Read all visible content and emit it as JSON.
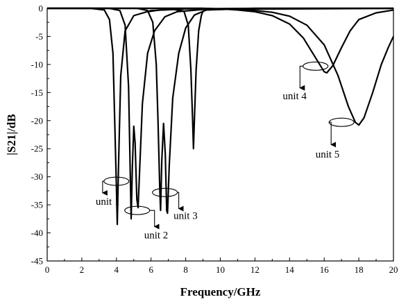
{
  "chart_data": {
    "type": "line",
    "xlabel": "Frequency/GHz",
    "ylabel": "|S21|/dB",
    "xlim": [
      0,
      20
    ],
    "ylim": [
      -45,
      0
    ],
    "xticks": [
      0,
      2,
      4,
      6,
      8,
      10,
      12,
      14,
      16,
      18,
      20
    ],
    "yticks": [
      0,
      -5,
      -10,
      -15,
      -20,
      -25,
      -30,
      -35,
      -40,
      -45
    ],
    "grid": false,
    "series": [
      {
        "label": "unit 1",
        "color": "#000000",
        "points": [
          [
            0,
            0
          ],
          [
            2.5,
            0
          ],
          [
            3.3,
            -0.3
          ],
          [
            3.6,
            -2
          ],
          [
            3.8,
            -8
          ],
          [
            3.9,
            -20
          ],
          [
            4.0,
            -32
          ],
          [
            4.05,
            -38.5
          ],
          [
            4.12,
            -28
          ],
          [
            4.25,
            -12
          ],
          [
            4.5,
            -4
          ],
          [
            5.0,
            -1.3
          ],
          [
            6.0,
            -0.4
          ],
          [
            8.0,
            -0.1
          ],
          [
            12.0,
            0
          ],
          [
            20.0,
            0
          ]
        ]
      },
      {
        "label": "unit 2",
        "color": "#000000",
        "points": [
          [
            0,
            0
          ],
          [
            3.6,
            0
          ],
          [
            4.2,
            -0.4
          ],
          [
            4.5,
            -3
          ],
          [
            4.7,
            -14
          ],
          [
            4.8,
            -30
          ],
          [
            4.85,
            -37.5
          ],
          [
            4.92,
            -28
          ],
          [
            5.0,
            -21
          ],
          [
            5.08,
            -24
          ],
          [
            5.18,
            -34
          ],
          [
            5.25,
            -35.5
          ],
          [
            5.35,
            -28
          ],
          [
            5.5,
            -17
          ],
          [
            5.8,
            -8
          ],
          [
            6.2,
            -4
          ],
          [
            6.8,
            -1.5
          ],
          [
            7.5,
            -0.6
          ],
          [
            9.0,
            -0.2
          ],
          [
            20.0,
            0
          ]
        ]
      },
      {
        "label": "unit 3",
        "color": "#000000",
        "points": [
          [
            0,
            0
          ],
          [
            5.2,
            0
          ],
          [
            5.8,
            -0.4
          ],
          [
            6.1,
            -2.5
          ],
          [
            6.3,
            -10
          ],
          [
            6.4,
            -20
          ],
          [
            6.5,
            -32
          ],
          [
            6.55,
            -36
          ],
          [
            6.62,
            -27
          ],
          [
            6.72,
            -20.5
          ],
          [
            6.82,
            -26
          ],
          [
            6.9,
            -36
          ],
          [
            6.95,
            -36.5
          ],
          [
            7.05,
            -28
          ],
          [
            7.25,
            -16
          ],
          [
            7.6,
            -8
          ],
          [
            8.0,
            -3.5
          ],
          [
            8.5,
            -1.2
          ],
          [
            9.2,
            -0.3
          ],
          [
            12.0,
            0
          ],
          [
            20.0,
            0
          ]
        ]
      },
      {
        "label": "",
        "color": "#000000",
        "points": [
          [
            5.8,
            -0.6
          ],
          [
            6.5,
            -0.3
          ],
          [
            7.3,
            -0.2
          ],
          [
            7.9,
            -0.5
          ],
          [
            8.15,
            -3
          ],
          [
            8.3,
            -11
          ],
          [
            8.4,
            -20
          ],
          [
            8.45,
            -25
          ],
          [
            8.5,
            -20
          ],
          [
            8.6,
            -11
          ],
          [
            8.75,
            -4
          ],
          [
            8.9,
            -1.3
          ],
          [
            9.0,
            -0.5
          ]
        ]
      },
      {
        "label": "unit 4",
        "color": "#000000",
        "points": [
          [
            0,
            0
          ],
          [
            9.0,
            0
          ],
          [
            10.0,
            -0.1
          ],
          [
            11.0,
            -0.3
          ],
          [
            12.0,
            -0.6
          ],
          [
            13.0,
            -1.3
          ],
          [
            14.0,
            -2.8
          ],
          [
            14.8,
            -5.3
          ],
          [
            15.5,
            -8.8
          ],
          [
            16.0,
            -11.3
          ],
          [
            16.15,
            -11.5
          ],
          [
            16.5,
            -10.2
          ],
          [
            17.0,
            -7.0
          ],
          [
            17.5,
            -4.0
          ],
          [
            18.0,
            -2.0
          ],
          [
            19.0,
            -0.8
          ],
          [
            20.0,
            -0.3
          ]
        ]
      },
      {
        "label": "unit 5",
        "color": "#000000",
        "points": [
          [
            0,
            0
          ],
          [
            9.0,
            0
          ],
          [
            10.0,
            -0.1
          ],
          [
            11.0,
            -0.2
          ],
          [
            12.0,
            -0.4
          ],
          [
            13.0,
            -0.7
          ],
          [
            14.0,
            -1.4
          ],
          [
            15.0,
            -3.0
          ],
          [
            16.0,
            -6.5
          ],
          [
            16.8,
            -12.0
          ],
          [
            17.4,
            -17.5
          ],
          [
            17.8,
            -20.3
          ],
          [
            18.0,
            -20.8
          ],
          [
            18.3,
            -19.5
          ],
          [
            18.8,
            -15.0
          ],
          [
            19.3,
            -10.0
          ],
          [
            19.7,
            -7.0
          ],
          [
            20.0,
            -5.0
          ]
        ]
      }
    ],
    "annotations": [
      {
        "text": "unit 1",
        "ring": [
          4.0,
          -30.8
        ],
        "arrow_to": [
          3.2,
          -33.0
        ],
        "label_at": [
          2.8,
          -35.0
        ]
      },
      {
        "text": "unit 2",
        "ring": [
          5.2,
          -36.0
        ],
        "arrow_to": [
          6.2,
          -39.0
        ],
        "label_at": [
          5.6,
          -41.0
        ]
      },
      {
        "text": "unit 3",
        "ring": [
          6.8,
          -32.8
        ],
        "arrow_to": [
          7.6,
          -35.8
        ],
        "label_at": [
          7.3,
          -37.5
        ]
      },
      {
        "text": "unit 4",
        "ring": [
          15.5,
          -10.3
        ],
        "arrow_to": [
          14.6,
          -14.3
        ],
        "label_at": [
          13.6,
          -16.2
        ]
      },
      {
        "text": "unit 5",
        "ring": [
          17.0,
          -20.3
        ],
        "arrow_to": [
          16.4,
          -24.4
        ],
        "label_at": [
          15.5,
          -26.6
        ]
      }
    ]
  }
}
